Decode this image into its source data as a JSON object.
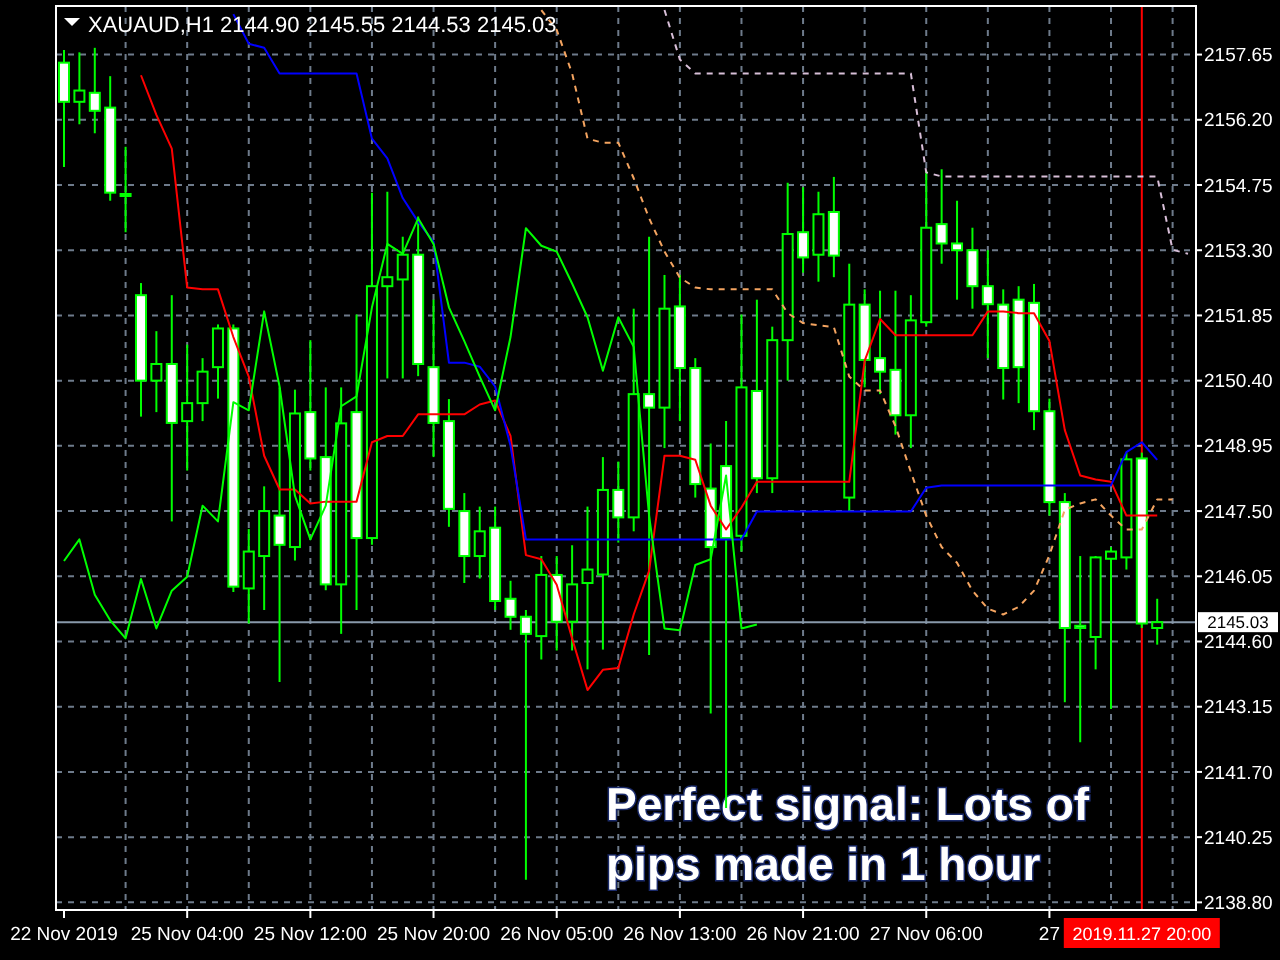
{
  "chart_data": {
    "type": "candlestick",
    "title": "XAUAUD,H1 2144.90 2145.55 2144.53 2145.03",
    "color": "#00ff00",
    "categories": [
      "22 Nov 2019",
      null,
      null,
      null,
      null,
      null,
      null,
      null,
      "25 Nov 04:00",
      null,
      null,
      null,
      null,
      null,
      null,
      null,
      "25 Nov 12:00",
      null,
      null,
      null,
      null,
      null,
      null,
      null,
      "25 Nov 20:00",
      null,
      null,
      null,
      null,
      null,
      null,
      null,
      "26 Nov 05:00",
      null,
      null,
      null,
      null,
      null,
      null,
      null,
      "26 Nov 13:00",
      null,
      null,
      null,
      null,
      null,
      null,
      null,
      "26 Nov 21:00",
      null,
      null,
      null,
      null,
      null,
      null,
      null,
      "27 Nov 06:00",
      null,
      null,
      null,
      null,
      null,
      null,
      null,
      "27",
      null,
      null,
      null,
      null,
      null,
      "2019.11.27 20:00",
      null,
      null,
      null
    ],
    "ohlc": [
      [
        2157.47,
        2157.75,
        2155.15,
        2156.6
      ],
      [
        2156.6,
        2157.7,
        2156.1,
        2156.85
      ],
      [
        2156.8,
        2157.8,
        2155.9,
        2156.4
      ],
      [
        2156.47,
        2157.17,
        2154.4,
        2154.58
      ],
      [
        2154.55,
        2155.6,
        2153.7,
        2154.55
      ],
      [
        2152.3,
        2152.57,
        2149.6,
        2150.4
      ],
      [
        2150.4,
        2151.5,
        2149.7,
        2150.77
      ],
      [
        2150.77,
        2152.3,
        2147.27,
        2149.46
      ],
      [
        2149.5,
        2151.2,
        2148.4,
        2149.9
      ],
      [
        2149.9,
        2150.9,
        2149.5,
        2150.6
      ],
      [
        2150.7,
        2151.65,
        2150.0,
        2151.56
      ],
      [
        2151.56,
        2151.65,
        2145.7,
        2145.82
      ],
      [
        2145.78,
        2147.1,
        2145.0,
        2146.6
      ],
      [
        2146.5,
        2148.05,
        2145.3,
        2147.5
      ],
      [
        2147.4,
        2150.25,
        2143.7,
        2146.75
      ],
      [
        2146.7,
        2150.2,
        2146.4,
        2149.67
      ],
      [
        2149.7,
        2151.3,
        2148.4,
        2148.67
      ],
      [
        2148.7,
        2150.25,
        2145.74,
        2145.87
      ],
      [
        2145.87,
        2150.25,
        2144.77,
        2149.45
      ],
      [
        2149.7,
        2151.87,
        2145.3,
        2146.9
      ],
      [
        2146.9,
        2154.58,
        2146.75,
        2152.5
      ],
      [
        2152.5,
        2154.6,
        2150.45,
        2152.7
      ],
      [
        2152.65,
        2153.6,
        2150.45,
        2153.2
      ],
      [
        2153.2,
        2154.05,
        2150.5,
        2150.77
      ],
      [
        2150.7,
        2152.2,
        2148.7,
        2149.46
      ],
      [
        2149.5,
        2149.99,
        2147.15,
        2147.55
      ],
      [
        2147.5,
        2147.9,
        2145.9,
        2146.5
      ],
      [
        2146.5,
        2147.6,
        2146.0,
        2147.05
      ],
      [
        2147.13,
        2147.6,
        2145.3,
        2145.5
      ],
      [
        2145.55,
        2145.95,
        2144.86,
        2145.15
      ],
      [
        2145.15,
        2145.3,
        2139.3,
        2144.77
      ],
      [
        2144.72,
        2146.5,
        2144.2,
        2146.08
      ],
      [
        2146.08,
        2146.5,
        2144.4,
        2145.04
      ],
      [
        2145.04,
        2146.74,
        2144.4,
        2145.87
      ],
      [
        2145.9,
        2147.6,
        2143.98,
        2146.2
      ],
      [
        2146.09,
        2148.7,
        2144.42,
        2147.97
      ],
      [
        2147.97,
        2148.6,
        2146.8,
        2147.36
      ],
      [
        2147.36,
        2152.0,
        2147.05,
        2150.1
      ],
      [
        2150.1,
        2153.6,
        2144.3,
        2149.8
      ],
      [
        2149.8,
        2152.75,
        2148.9,
        2152.0
      ],
      [
        2152.05,
        2152.75,
        2149.5,
        2150.68
      ],
      [
        2150.68,
        2150.9,
        2147.8,
        2148.1
      ],
      [
        2148.0,
        2149.0,
        2143.0,
        2146.7
      ],
      [
        2148.5,
        2149.5,
        2140.9,
        2146.9
      ],
      [
        2146.95,
        2151.87,
        2146.6,
        2150.25
      ],
      [
        2150.17,
        2152.2,
        2147.9,
        2148.23
      ],
      [
        2148.23,
        2151.6,
        2147.9,
        2151.3
      ],
      [
        2151.3,
        2154.8,
        2150.4,
        2153.66
      ],
      [
        2153.7,
        2154.7,
        2152.8,
        2153.14
      ],
      [
        2153.2,
        2154.6,
        2152.6,
        2154.1
      ],
      [
        2154.15,
        2154.93,
        2152.7,
        2153.18
      ],
      [
        2147.8,
        2153.0,
        2147.5,
        2152.09
      ],
      [
        2152.09,
        2152.43,
        2150.25,
        2150.86
      ],
      [
        2150.9,
        2152.4,
        2150.1,
        2150.6
      ],
      [
        2150.64,
        2152.4,
        2149.2,
        2149.63
      ],
      [
        2149.63,
        2152.3,
        2148.9,
        2151.74
      ],
      [
        2151.7,
        2155.07,
        2151.6,
        2153.8
      ],
      [
        2153.88,
        2155.1,
        2153.0,
        2153.45
      ],
      [
        2153.45,
        2154.4,
        2152.2,
        2153.3
      ],
      [
        2153.3,
        2153.8,
        2152.0,
        2152.5
      ],
      [
        2152.5,
        2153.3,
        2150.9,
        2152.1
      ],
      [
        2152.09,
        2152.43,
        2149.98,
        2150.68
      ],
      [
        2152.2,
        2152.5,
        2149.9,
        2150.7
      ],
      [
        2152.13,
        2152.55,
        2149.3,
        2149.72
      ],
      [
        2149.72,
        2150.0,
        2147.4,
        2147.7
      ],
      [
        2147.7,
        2147.9,
        2143.25,
        2144.9
      ],
      [
        2144.95,
        2146.5,
        2142.36,
        2144.9
      ],
      [
        2144.7,
        2146.5,
        2143.98,
        2146.47
      ],
      [
        2146.44,
        2146.7,
        2143.1,
        2146.6
      ],
      [
        2146.47,
        2148.8,
        2146.2,
        2148.65
      ],
      [
        2148.67,
        2148.8,
        2144.9,
        2145.0
      ],
      [
        2144.9,
        2145.55,
        2144.53,
        2145.03
      ],
      null,
      null
    ],
    "series": [
      {
        "type": "line",
        "color": "#ff0000",
        "line_style": "solid",
        "values": [
          null,
          null,
          null,
          null,
          null,
          2157.19,
          2156.31,
          2155.56,
          2152.47,
          2152.43,
          2152.43,
          2151.37,
          2150.49,
          2148.73,
          2147.98,
          2147.98,
          2147.67,
          2147.71,
          2147.71,
          2147.71,
          2149.03,
          2149.17,
          2149.17,
          2149.65,
          2149.65,
          2149.65,
          2149.65,
          2149.87,
          2149.96,
          2149.17,
          2146.52,
          2146.43,
          2145.86,
          2144.67,
          2143.52,
          2143.97,
          2144.01,
          2145.2,
          2146.17,
          2148.73,
          2148.73,
          2148.64,
          2147.62,
          2147.09,
          2147.58,
          2148.15,
          2148.15,
          2148.15,
          2148.15,
          2148.15,
          2148.15,
          2148.15,
          2150.84,
          2151.77,
          2151.41,
          2151.41,
          2151.41,
          2151.41,
          2151.41,
          2151.41,
          2151.94,
          2151.94,
          2151.9,
          2151.9,
          2151.28,
          2149.3,
          2148.29,
          2148.2,
          2148.15,
          2147.4,
          2147.4,
          2147.4,
          null,
          null
        ]
      },
      {
        "type": "line",
        "color": "#0000ff",
        "line_style": "solid",
        "values": [
          null,
          null,
          null,
          null,
          null,
          null,
          null,
          null,
          null,
          null,
          null,
          2158.55,
          2157.89,
          2157.8,
          2157.23,
          2157.23,
          2157.23,
          2157.23,
          2157.23,
          2157.23,
          2155.78,
          2155.34,
          2154.46,
          2153.93,
          2153.49,
          2150.8,
          2150.8,
          2150.71,
          2150.27,
          2148.95,
          2146.87,
          2146.87,
          2146.87,
          2146.87,
          2146.87,
          2146.87,
          2146.87,
          2146.87,
          2146.87,
          2146.87,
          2146.87,
          2146.87,
          2146.87,
          2146.87,
          2146.87,
          2147.49,
          2147.49,
          2147.49,
          2147.49,
          2147.49,
          2147.49,
          2147.49,
          2147.49,
          2147.49,
          2147.49,
          2147.49,
          2148.02,
          2148.07,
          2148.07,
          2148.07,
          2148.07,
          2148.07,
          2148.07,
          2148.07,
          2148.07,
          2148.07,
          2148.07,
          2148.07,
          2148.07,
          2148.81,
          2149.03,
          2148.64,
          null,
          null
        ]
      },
      {
        "type": "line",
        "color": "#00ff00",
        "line_style": "solid",
        "values": [
          2146.39,
          2146.87,
          2145.64,
          2145.07,
          2144.67,
          2145.99,
          2144.89,
          2145.73,
          2146.04,
          2147.62,
          2147.27,
          2149.92,
          2149.74,
          2151.94,
          2150.27,
          2147.84,
          2146.87,
          2147.62,
          2149.83,
          2150.05,
          2152.03,
          2153.44,
          2153.22,
          2154.01,
          2153.44,
          2152.03,
          2151.28,
          2150.49,
          2149.74,
          2151.37,
          2153.79,
          2153.4,
          2153.27,
          2152.56,
          2151.81,
          2150.62,
          2151.81,
          2151.15,
          2147.4,
          2144.89,
          2144.85,
          2146.3,
          2146.43,
          2148.29,
          2144.89,
          2144.98,
          null,
          null,
          null,
          null,
          null,
          null,
          null,
          null,
          null,
          null,
          null,
          null,
          null,
          null,
          null,
          null,
          null,
          null,
          null,
          null,
          null,
          null,
          null,
          null,
          null,
          null,
          null,
          null
        ]
      },
      {
        "type": "line",
        "color": "#f4a460",
        "line_style": "dashed",
        "values": [
          null,
          null,
          null,
          null,
          null,
          null,
          null,
          null,
          null,
          null,
          null,
          null,
          null,
          null,
          null,
          null,
          null,
          null,
          null,
          null,
          null,
          null,
          null,
          null,
          null,
          null,
          null,
          null,
          null,
          null,
          null,
          2158.64,
          2158.2,
          2157.23,
          2155.78,
          2155.69,
          2155.69,
          2154.9,
          2154.01,
          2153.27,
          2152.69,
          2152.47,
          2152.43,
          2152.43,
          2152.43,
          2152.43,
          2152.43,
          2151.9,
          2151.68,
          2151.63,
          2151.59,
          2150.49,
          2150.18,
          2150.18,
          2149.39,
          2148.37,
          2147.4,
          2146.7,
          2146.35,
          2145.73,
          2145.33,
          2145.2,
          2145.37,
          2145.73,
          2146.52,
          2147.53,
          2147.67,
          2147.76,
          2147.4,
          2147.09,
          2147.09,
          2147.76,
          2147.76,
          null
        ]
      },
      {
        "type": "line",
        "color": "#d8bfd8",
        "line_style": "dashed",
        "values": [
          null,
          null,
          null,
          null,
          null,
          null,
          null,
          null,
          null,
          null,
          null,
          null,
          null,
          null,
          null,
          null,
          null,
          null,
          null,
          null,
          null,
          null,
          null,
          null,
          null,
          null,
          null,
          null,
          null,
          null,
          null,
          null,
          null,
          null,
          null,
          null,
          null,
          null,
          null,
          2158.64,
          2157.54,
          2157.23,
          2157.23,
          2157.23,
          2157.23,
          2157.23,
          2157.23,
          2157.23,
          2157.23,
          2157.23,
          2157.23,
          2157.23,
          2157.23,
          2157.23,
          2157.23,
          2157.23,
          2155.03,
          2154.94,
          2154.94,
          2154.94,
          2154.94,
          2154.94,
          2154.94,
          2154.94,
          2154.94,
          2154.94,
          2154.94,
          2154.94,
          2154.94,
          2154.94,
          2154.94,
          2154.94,
          2153.31,
          2153.22
        ]
      }
    ],
    "ylim": [
      2138.63,
      2158.73
    ],
    "yticks": [
      2157.65,
      {
        "value": 2156.2,
        "label": "2156.20"
      },
      2154.75,
      {
        "value": 2153.3,
        "label": "2153.30"
      },
      2151.85,
      {
        "value": 2150.4,
        "label": "2150.40"
      },
      2148.95,
      {
        "value": 2147.5,
        "label": "2147.50"
      },
      2146.05,
      {
        "value": 2144.6,
        "label": "2144.60"
      },
      2143.15,
      {
        "value": 2141.7,
        "label": "2141.70"
      },
      2140.25,
      {
        "value": 2138.8,
        "label": "2138.80"
      }
    ],
    "grid": true,
    "ref_lines": [
      {
        "axis": "y",
        "value": 2145.03,
        "label": "2145.03",
        "color": "#8899aa"
      },
      {
        "axis": "x",
        "value": "2019.11.27 20:00",
        "color": "#ff0000"
      }
    ],
    "annotations": [
      "Perfect signal: Lots of pips made in 1 hour"
    ]
  }
}
